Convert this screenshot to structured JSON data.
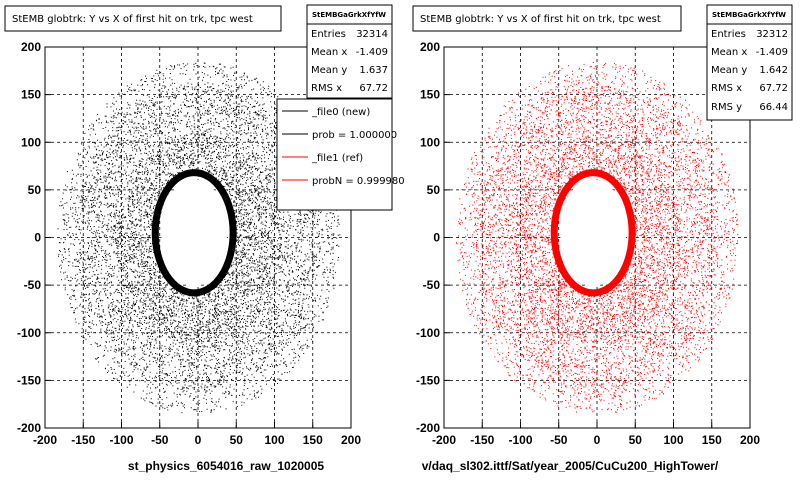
{
  "colors": {
    "left_points": "#000000",
    "right_points": "#ff0000",
    "grid": "#000000"
  },
  "footer_text": "",
  "chart_data": [
    {
      "type": "scatter",
      "title": "StEMB globtrk: Y vs X of first hit on trk, tpc west",
      "xlabel": "st_physics_6054016_raw_1020005",
      "ylabel": "",
      "xlim": [
        -200,
        200
      ],
      "ylim": [
        -200,
        200
      ],
      "xticks": [
        -200,
        -150,
        -100,
        -50,
        0,
        50,
        100,
        150,
        200
      ],
      "yticks": [
        -200,
        -150,
        -100,
        -50,
        0,
        50,
        100,
        150,
        200
      ],
      "grid": true,
      "points_color": "#000000",
      "stats": {
        "header": "StEMBGaGrkXfYfW",
        "rows": [
          {
            "label": "Entries",
            "value": "32314"
          },
          {
            "label": "Mean x",
            "value": "-1.409"
          },
          {
            "label": "Mean y",
            "value": "1.637"
          },
          {
            "label": "RMS x",
            "value": "67.72"
          }
        ]
      },
      "legend": {
        "placement": "top-right",
        "entries": [
          {
            "label": "_file0 (new)",
            "color": "#000000"
          },
          {
            "label": "prob = 1.000000",
            "color": "#000000"
          },
          {
            "label": "_file1 (ref)",
            "color": "#ff0000"
          },
          {
            "label": "probN = 0.999980",
            "color": "#ff0000"
          }
        ]
      }
    },
    {
      "type": "scatter",
      "title": "StEMB globtrk: Y vs X of first hit on trk, tpc west",
      "xlabel": "v/daq_sl302.ittf/Sat/year_2005/CuCu200_HighTower/",
      "ylabel": "",
      "xlim": [
        -200,
        200
      ],
      "ylim": [
        -200,
        200
      ],
      "xticks": [
        -200,
        -150,
        -100,
        -50,
        0,
        50,
        100,
        150,
        200
      ],
      "yticks": [
        -200,
        -150,
        -100,
        -50,
        0,
        50,
        100,
        150,
        200
      ],
      "grid": true,
      "points_color": "#ff0000",
      "stats": {
        "header": "StEMBGaGrkXfYfW",
        "rows": [
          {
            "label": "Entries",
            "value": "32312"
          },
          {
            "label": "Mean x",
            "value": "-1.409"
          },
          {
            "label": "Mean y",
            "value": "1.642"
          },
          {
            "label": "RMS x",
            "value": "67.72"
          },
          {
            "label": "RMS y",
            "value": "66.44"
          }
        ]
      }
    }
  ]
}
